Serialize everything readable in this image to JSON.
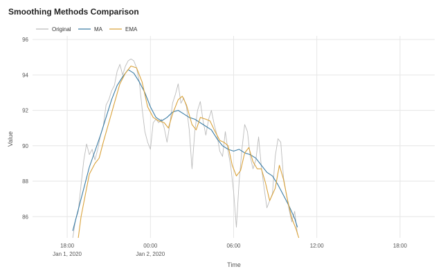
{
  "chart_data": {
    "type": "line",
    "title": "Smoothing Methods Comparison",
    "xlabel": "Time",
    "ylabel": "Value",
    "x_range": [
      -2.5,
      26.5
    ],
    "ylim": [
      84.8,
      96.2
    ],
    "y_ticks": [
      86,
      88,
      90,
      92,
      94,
      96
    ],
    "x_ticks": [
      {
        "x": 0,
        "label": "18:00",
        "sublabel": "Jan 1, 2020"
      },
      {
        "x": 6,
        "label": "00:00",
        "sublabel": "Jan 2, 2020"
      },
      {
        "x": 12,
        "label": "06:00",
        "sublabel": ""
      },
      {
        "x": 18,
        "label": "12:00",
        "sublabel": ""
      },
      {
        "x": 24,
        "label": "18:00",
        "sublabel": ""
      }
    ],
    "grid": true,
    "legend_position": "top-left",
    "series": [
      {
        "name": "Original",
        "color": "#bbbbbb",
        "points": [
          [
            0.4,
            84.8
          ],
          [
            0.6,
            85.8
          ],
          [
            0.8,
            86.3
          ],
          [
            1.0,
            87.8
          ],
          [
            1.2,
            89.2
          ],
          [
            1.4,
            90.1
          ],
          [
            1.6,
            89.5
          ],
          [
            1.8,
            89.8
          ],
          [
            2.0,
            89.2
          ],
          [
            2.2,
            89.8
          ],
          [
            2.4,
            90.6
          ],
          [
            2.6,
            91.1
          ],
          [
            2.8,
            92.3
          ],
          [
            3.0,
            92.6
          ],
          [
            3.2,
            93.1
          ],
          [
            3.4,
            93.4
          ],
          [
            3.6,
            94.2
          ],
          [
            3.8,
            94.6
          ],
          [
            4.0,
            94.0
          ],
          [
            4.2,
            94.5
          ],
          [
            4.4,
            94.8
          ],
          [
            4.6,
            94.9
          ],
          [
            4.8,
            94.8
          ],
          [
            5.0,
            94.4
          ],
          [
            5.2,
            93.6
          ],
          [
            5.4,
            92.1
          ],
          [
            5.6,
            90.8
          ],
          [
            5.8,
            90.2
          ],
          [
            6.0,
            89.8
          ],
          [
            6.2,
            91.3
          ],
          [
            6.4,
            91.5
          ],
          [
            6.6,
            91.3
          ],
          [
            6.8,
            91.5
          ],
          [
            7.0,
            91.0
          ],
          [
            7.2,
            90.2
          ],
          [
            7.4,
            91.2
          ],
          [
            7.6,
            92.4
          ],
          [
            7.8,
            92.9
          ],
          [
            8.0,
            93.5
          ],
          [
            8.2,
            92.4
          ],
          [
            8.4,
            92.7
          ],
          [
            8.6,
            92.2
          ],
          [
            8.8,
            90.9
          ],
          [
            9.0,
            88.7
          ],
          [
            9.2,
            90.8
          ],
          [
            9.4,
            92.0
          ],
          [
            9.6,
            92.5
          ],
          [
            9.8,
            91.4
          ],
          [
            10.0,
            90.6
          ],
          [
            10.2,
            91.5
          ],
          [
            10.4,
            92.0
          ],
          [
            10.6,
            91.2
          ],
          [
            10.8,
            90.6
          ],
          [
            11.0,
            89.7
          ],
          [
            11.2,
            89.4
          ],
          [
            11.4,
            90.8
          ],
          [
            11.6,
            89.7
          ],
          [
            11.8,
            88.8
          ],
          [
            12.0,
            87.4
          ],
          [
            12.2,
            85.4
          ],
          [
            12.4,
            88.0
          ],
          [
            12.6,
            89.8
          ],
          [
            12.8,
            91.2
          ],
          [
            13.0,
            90.8
          ],
          [
            13.2,
            89.4
          ],
          [
            13.4,
            88.7
          ],
          [
            13.6,
            89.2
          ],
          [
            13.8,
            90.5
          ],
          [
            14.0,
            88.8
          ],
          [
            14.2,
            87.6
          ],
          [
            14.4,
            86.5
          ],
          [
            14.6,
            86.9
          ],
          [
            14.8,
            87.3
          ],
          [
            15.0,
            89.4
          ],
          [
            15.2,
            90.4
          ],
          [
            15.4,
            90.2
          ],
          [
            15.6,
            88.2
          ],
          [
            15.8,
            87.3
          ],
          [
            16.0,
            86.4
          ],
          [
            16.2,
            85.7
          ],
          [
            16.4,
            86.3
          ],
          [
            16.6,
            85.0
          ]
        ]
      },
      {
        "name": "MA",
        "color": "#3a7ca5",
        "points": [
          [
            0.4,
            85.2
          ],
          [
            0.8,
            86.4
          ],
          [
            1.2,
            87.6
          ],
          [
            1.6,
            88.8
          ],
          [
            2.0,
            89.7
          ],
          [
            2.4,
            90.6
          ],
          [
            2.8,
            91.6
          ],
          [
            3.2,
            92.6
          ],
          [
            3.6,
            93.4
          ],
          [
            4.0,
            93.9
          ],
          [
            4.4,
            94.3
          ],
          [
            4.8,
            94.1
          ],
          [
            5.2,
            93.6
          ],
          [
            5.6,
            93.0
          ],
          [
            6.0,
            92.2
          ],
          [
            6.4,
            91.6
          ],
          [
            6.8,
            91.4
          ],
          [
            7.2,
            91.6
          ],
          [
            7.6,
            91.9
          ],
          [
            8.0,
            92.0
          ],
          [
            8.4,
            91.8
          ],
          [
            8.8,
            91.6
          ],
          [
            9.2,
            91.5
          ],
          [
            9.6,
            91.3
          ],
          [
            10.0,
            91.1
          ],
          [
            10.4,
            90.9
          ],
          [
            10.8,
            90.4
          ],
          [
            11.2,
            90.0
          ],
          [
            11.6,
            89.8
          ],
          [
            12.0,
            89.7
          ],
          [
            12.4,
            89.8
          ],
          [
            12.8,
            89.6
          ],
          [
            13.2,
            89.5
          ],
          [
            13.6,
            89.3
          ],
          [
            14.0,
            88.9
          ],
          [
            14.4,
            88.5
          ],
          [
            14.8,
            88.3
          ],
          [
            15.2,
            87.8
          ],
          [
            15.6,
            87.2
          ],
          [
            16.0,
            86.6
          ],
          [
            16.4,
            85.9
          ],
          [
            16.6,
            85.4
          ]
        ]
      },
      {
        "name": "EMA",
        "color": "#d9a23a",
        "points": [
          [
            0.8,
            84.8
          ],
          [
            1.0,
            86.0
          ],
          [
            1.3,
            87.2
          ],
          [
            1.6,
            88.4
          ],
          [
            2.0,
            89.0
          ],
          [
            2.3,
            89.3
          ],
          [
            2.6,
            90.2
          ],
          [
            3.0,
            91.3
          ],
          [
            3.4,
            92.4
          ],
          [
            3.8,
            93.5
          ],
          [
            4.2,
            94.1
          ],
          [
            4.6,
            94.5
          ],
          [
            5.0,
            94.4
          ],
          [
            5.4,
            93.6
          ],
          [
            5.8,
            92.2
          ],
          [
            6.2,
            91.6
          ],
          [
            6.6,
            91.4
          ],
          [
            7.0,
            91.3
          ],
          [
            7.3,
            91.0
          ],
          [
            7.6,
            91.8
          ],
          [
            8.0,
            92.6
          ],
          [
            8.3,
            92.8
          ],
          [
            8.6,
            92.3
          ],
          [
            9.0,
            91.2
          ],
          [
            9.3,
            90.9
          ],
          [
            9.6,
            91.6
          ],
          [
            10.0,
            91.5
          ],
          [
            10.3,
            91.4
          ],
          [
            10.6,
            90.9
          ],
          [
            11.0,
            90.3
          ],
          [
            11.3,
            90.2
          ],
          [
            11.6,
            90.0
          ],
          [
            11.9,
            88.9
          ],
          [
            12.2,
            88.3
          ],
          [
            12.5,
            88.6
          ],
          [
            12.8,
            89.6
          ],
          [
            13.1,
            89.9
          ],
          [
            13.4,
            89.1
          ],
          [
            13.7,
            88.7
          ],
          [
            14.0,
            88.7
          ],
          [
            14.3,
            87.9
          ],
          [
            14.6,
            86.9
          ],
          [
            15.0,
            87.6
          ],
          [
            15.3,
            88.9
          ],
          [
            15.6,
            88.1
          ],
          [
            15.9,
            86.9
          ],
          [
            16.2,
            85.9
          ],
          [
            16.5,
            85.3
          ],
          [
            16.7,
            84.8
          ]
        ]
      }
    ]
  }
}
